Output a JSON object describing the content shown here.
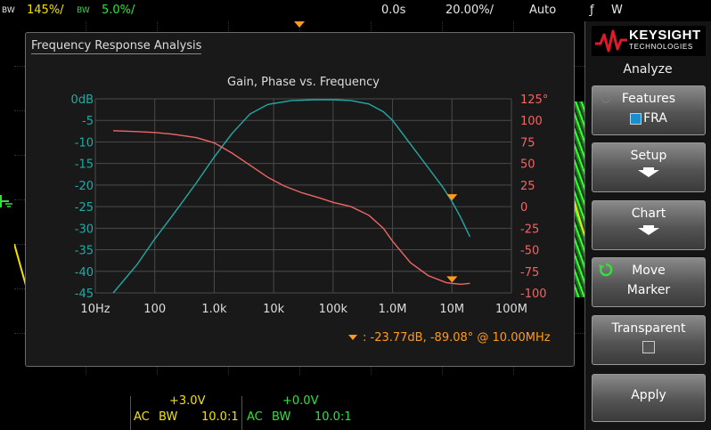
{
  "top_bar": {
    "ch1_bw_tag": "BW",
    "ch1_scale": "145%/",
    "ch2_bw_tag": "BW",
    "ch2_scale": "5.0%/",
    "time_ref": "0.0s",
    "time_scale": "20.00%/",
    "trigger_mode": "Auto",
    "trigger_slope_icon": "rising-edge-icon",
    "trigger_source": "W"
  },
  "dialog": {
    "title": "Frequency Response Analysis",
    "chart_title": "Gain, Phase vs. Frequency",
    "marker_readout": ":  -23.77dB, -89.08° @ 10.00MHz"
  },
  "chart_data": {
    "type": "line",
    "title": "Gain, Phase vs. Frequency",
    "x_scale": "log",
    "xlim": [
      10,
      100000000
    ],
    "x_ticks": [
      "10Hz",
      "100",
      "1.0k",
      "10k",
      "100k",
      "1.0M",
      "10M",
      "100M"
    ],
    "y_left_ticks": [
      "0dB",
      "-5",
      "-10",
      "-15",
      "-20",
      "-25",
      "-30",
      "-35",
      "-40",
      "-45"
    ],
    "y_left_lim": [
      -45,
      0
    ],
    "y_right_ticks": [
      "125°",
      "100",
      "75",
      "50",
      "25",
      "0",
      "-25",
      "-50",
      "-75",
      "-100"
    ],
    "y_right_lim": [
      -100,
      125
    ],
    "grid": true,
    "series": [
      {
        "axis": "left",
        "color": "#22aaa5",
        "x": [
          20,
          50,
          100,
          200,
          500,
          1000,
          2000,
          4000,
          8000,
          20000,
          50000,
          100000,
          200000,
          400000,
          700000,
          1000000,
          2000000,
          4000000,
          7000000,
          10000000,
          14000000,
          20000000
        ],
        "y": [
          -45,
          -38.5,
          -32.5,
          -27,
          -19.5,
          -13.5,
          -8,
          -3.5,
          -1.3,
          -0.4,
          -0.2,
          -0.2,
          -0.4,
          -1.2,
          -3,
          -5,
          -10.5,
          -16,
          -20.5,
          -23.8,
          -27.5,
          -32
        ]
      },
      {
        "axis": "right",
        "color": "#f06565",
        "x": [
          20,
          50,
          100,
          200,
          500,
          1000,
          2000,
          4000,
          8000,
          15000,
          30000,
          60000,
          100000,
          200000,
          400000,
          700000,
          1000000,
          2000000,
          4000000,
          8000000,
          10000000,
          14000000,
          20000000
        ],
        "y": [
          88,
          87,
          86,
          84,
          80,
          74,
          62,
          48,
          34,
          24,
          16,
          10,
          5,
          0,
          -10,
          -25,
          -40,
          -65,
          -80,
          -88,
          -89,
          -90,
          -89
        ]
      }
    ],
    "markers": [
      {
        "x": 10000000,
        "y": -23.77,
        "axis": "left"
      },
      {
        "x": 10000000,
        "y": -89.08,
        "axis": "right"
      }
    ]
  },
  "softkeys": {
    "brand_name": "KEYSIGHT",
    "brand_sub": "TECHNOLOGIES",
    "menu_title": "Analyze",
    "features_label": "Features",
    "fra_label": "FRA",
    "setup_label": "Setup",
    "chart_label": "Chart",
    "move_label": "Move",
    "marker_label": "Marker",
    "transparent_label": "Transparent",
    "apply_label": "Apply"
  },
  "bottom_bar": {
    "ch1_offset": "+3.0V",
    "ch1_coupling": "AC",
    "ch1_bw": "BW",
    "ch1_probe": "10.0:1",
    "ch2_offset": "+0.0V",
    "ch2_coupling": "AC",
    "ch2_bw": "BW",
    "ch2_probe": "10.0:1"
  },
  "colors": {
    "ch1": "#f2e200",
    "ch2": "#2fe23a",
    "gain": "#22aaa5",
    "phase": "#f06565",
    "marker": "#ff9b1c"
  }
}
